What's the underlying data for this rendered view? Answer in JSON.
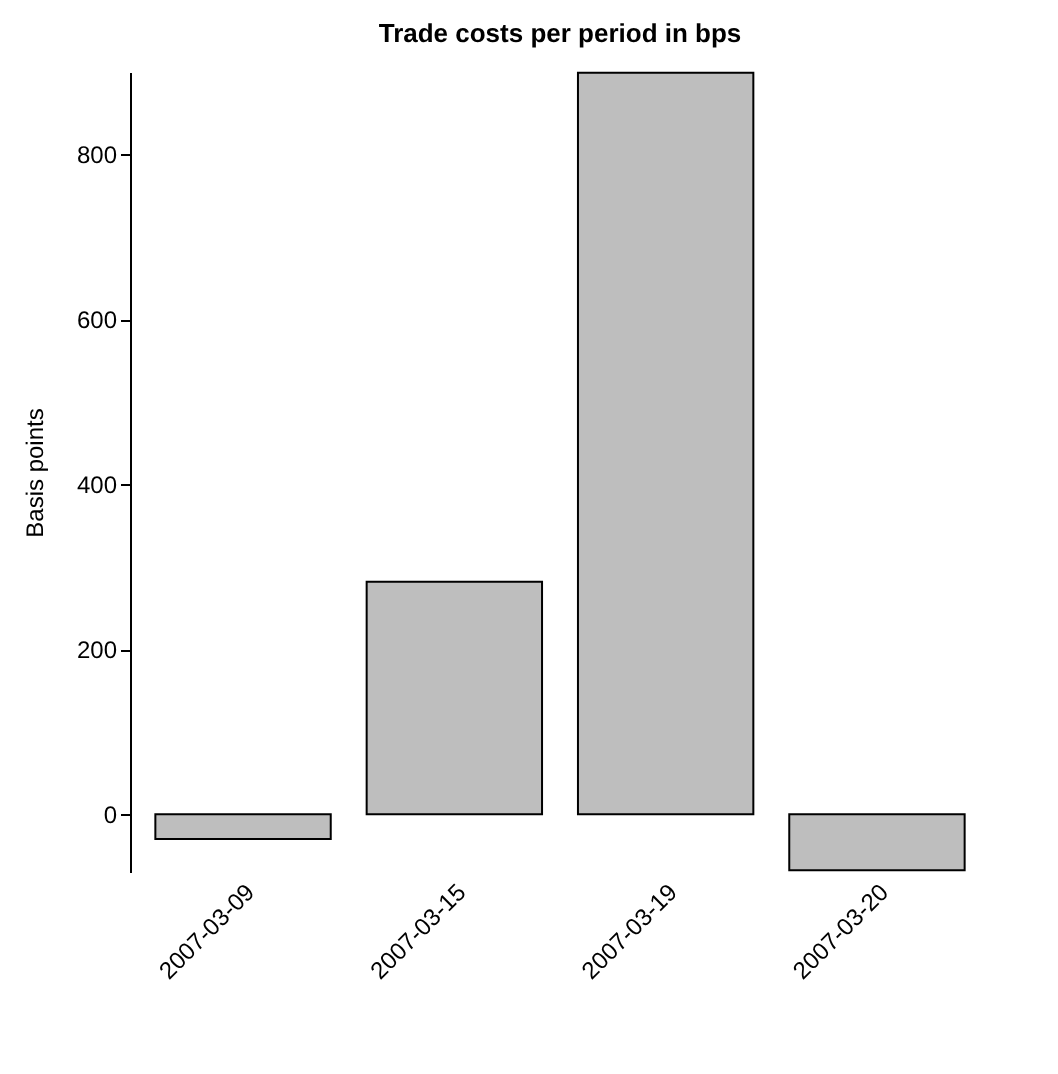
{
  "chart_data": {
    "type": "bar",
    "title": "Trade costs per period in bps",
    "ylabel": "Basis points",
    "categories": [
      "2007-03-09",
      "2007-03-15",
      "2007-03-19",
      "2007-03-20"
    ],
    "values": [
      -30,
      282,
      899,
      -68
    ],
    "color": "#bebebe",
    "ylim": [
      -70,
      900
    ],
    "yticks": [
      0,
      200,
      400,
      600,
      800
    ],
    "grid": false
  }
}
